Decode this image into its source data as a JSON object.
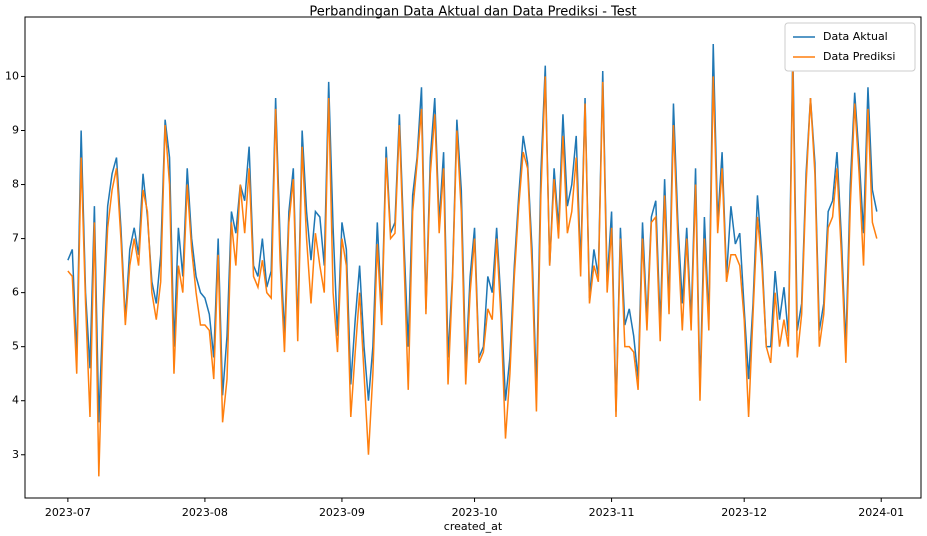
{
  "chart_data": {
    "type": "line",
    "title": "Perbandingan Data Aktual dan Data Prediksi - Test",
    "xlabel": "created_at",
    "x": [
      0,
      1,
      2,
      3,
      4,
      5,
      6,
      7,
      8,
      9,
      10,
      11,
      12,
      13,
      14,
      15,
      16,
      17,
      18,
      19,
      20,
      21,
      22,
      23,
      24,
      25,
      26,
      27,
      28,
      29,
      30,
      31,
      32,
      33,
      34,
      35,
      36,
      37,
      38,
      39,
      40,
      41,
      42,
      43,
      44,
      45,
      46,
      47,
      48,
      49,
      50,
      51,
      52,
      53,
      54,
      55,
      56,
      57,
      58,
      59,
      60,
      61,
      62,
      63,
      64,
      65,
      66,
      67,
      68,
      69,
      70,
      71,
      72,
      73,
      74,
      75,
      76,
      77,
      78,
      79,
      80,
      81,
      82,
      83,
      84,
      85,
      86,
      87,
      88,
      89,
      90,
      91,
      92,
      93,
      94,
      95,
      96,
      97,
      98,
      99,
      100,
      101,
      102,
      103,
      104,
      105,
      106,
      107,
      108,
      109,
      110,
      111,
      112,
      113,
      114,
      115,
      116,
      117,
      118,
      119,
      120,
      121,
      122,
      123,
      124,
      125,
      126,
      127,
      128,
      129,
      130,
      131,
      132,
      133,
      134,
      135,
      136,
      137,
      138,
      139,
      140,
      141,
      142,
      143,
      144,
      145,
      146,
      147,
      148,
      149,
      150,
      151,
      152,
      153,
      154,
      155,
      156,
      157,
      158,
      159,
      160,
      161,
      162,
      163,
      164,
      165,
      166,
      167,
      168,
      169,
      170,
      171,
      172,
      173,
      174,
      175,
      176,
      177,
      178,
      179,
      180,
      181,
      182,
      183
    ],
    "series": [
      {
        "name": "Data Aktual",
        "color": "#1f77b4",
        "values": [
          6.6,
          6.8,
          4.8,
          9.0,
          6.0,
          4.6,
          7.6,
          3.6,
          5.8,
          7.6,
          8.2,
          8.5,
          7.2,
          5.5,
          6.8,
          7.2,
          6.7,
          8.2,
          7.4,
          6.2,
          5.8,
          6.7,
          9.2,
          8.5,
          5.0,
          7.2,
          6.3,
          8.3,
          7.0,
          6.3,
          6.0,
          5.9,
          5.6,
          4.8,
          7.0,
          4.1,
          5.2,
          7.5,
          7.1,
          8.0,
          7.7,
          8.7,
          6.5,
          6.3,
          7.0,
          6.1,
          6.4,
          9.6,
          7.0,
          5.2,
          7.5,
          8.3,
          5.3,
          9.0,
          7.5,
          6.6,
          7.5,
          7.4,
          6.5,
          9.9,
          7.2,
          5.2,
          7.3,
          6.8,
          4.3,
          5.5,
          6.5,
          5.0,
          4.0,
          5.0,
          7.3,
          5.6,
          8.7,
          7.1,
          7.3,
          9.3,
          7.0,
          5.0,
          7.8,
          8.5,
          9.8,
          5.7,
          8.5,
          9.6,
          7.3,
          8.6,
          4.8,
          6.3,
          9.2,
          7.9,
          4.6,
          6.3,
          7.2,
          4.8,
          5.0,
          6.3,
          6.0,
          7.2,
          5.8,
          4.0,
          4.8,
          6.5,
          7.8,
          8.9,
          8.4,
          6.8,
          4.2,
          8.2,
          10.2,
          6.5,
          8.3,
          7.2,
          9.3,
          7.6,
          8.0,
          8.9,
          6.5,
          9.6,
          5.9,
          6.8,
          6.3,
          10.1,
          6.2,
          7.5,
          3.8,
          7.2,
          5.4,
          5.7,
          5.2,
          4.4,
          7.3,
          5.5,
          7.4,
          7.7,
          5.4,
          8.1,
          5.8,
          9.5,
          7.3,
          5.8,
          7.2,
          5.5,
          8.3,
          4.2,
          7.4,
          5.5,
          10.6,
          7.3,
          8.6,
          6.3,
          7.6,
          6.9,
          7.1,
          5.7,
          4.4,
          5.8,
          7.8,
          6.7,
          5.0,
          5.0,
          6.4,
          5.5,
          6.1,
          5.2,
          10.5,
          5.3,
          5.8,
          8.2,
          9.6,
          8.4,
          5.3,
          5.8,
          7.5,
          7.7,
          8.6,
          7.0,
          5.0,
          8.0,
          9.7,
          8.5,
          7.1,
          9.8,
          7.9,
          7.5
        ]
      },
      {
        "name": "Data Prediksi",
        "color": "#ff7f0e",
        "values": [
          6.4,
          6.3,
          4.5,
          8.5,
          5.8,
          3.7,
          7.3,
          2.6,
          5.5,
          7.2,
          7.9,
          8.3,
          7.0,
          5.4,
          6.5,
          7.0,
          6.5,
          7.9,
          7.5,
          6.0,
          5.5,
          6.2,
          9.1,
          8.0,
          4.5,
          6.5,
          6.0,
          8.0,
          6.8,
          6.0,
          5.4,
          5.4,
          5.3,
          4.4,
          6.7,
          3.6,
          4.4,
          7.3,
          6.5,
          8.0,
          7.1,
          8.3,
          6.3,
          6.1,
          6.6,
          6.0,
          5.9,
          9.4,
          6.6,
          4.9,
          7.3,
          8.1,
          5.1,
          8.7,
          7.0,
          5.8,
          7.1,
          6.5,
          6.0,
          9.6,
          6.0,
          4.9,
          7.0,
          6.5,
          3.7,
          4.9,
          6.0,
          4.5,
          3.0,
          4.5,
          6.9,
          5.4,
          8.5,
          7.0,
          7.1,
          9.1,
          6.7,
          4.2,
          7.5,
          8.4,
          9.4,
          5.6,
          8.2,
          9.3,
          7.1,
          8.3,
          4.3,
          6.2,
          9.0,
          7.5,
          4.3,
          6.0,
          7.0,
          4.7,
          4.9,
          5.7,
          5.5,
          7.0,
          5.5,
          3.3,
          4.5,
          6.3,
          7.6,
          8.6,
          8.3,
          6.5,
          3.8,
          7.8,
          10.0,
          6.5,
          8.1,
          7.0,
          8.9,
          7.1,
          7.5,
          8.5,
          6.3,
          9.5,
          5.8,
          6.5,
          6.2,
          9.9,
          6.0,
          7.2,
          3.7,
          7.0,
          5.0,
          5.0,
          4.9,
          4.2,
          7.0,
          5.3,
          7.3,
          7.4,
          5.1,
          7.8,
          5.6,
          9.1,
          7.0,
          5.3,
          7.0,
          5.3,
          8.0,
          4.0,
          7.0,
          5.3,
          10.0,
          7.1,
          8.3,
          6.2,
          6.7,
          6.7,
          6.5,
          5.5,
          3.7,
          5.6,
          7.4,
          6.5,
          5.0,
          4.7,
          6.0,
          5.0,
          5.5,
          5.0,
          10.2,
          4.8,
          5.6,
          8.0,
          9.6,
          8.2,
          5.0,
          5.6,
          7.2,
          7.4,
          8.3,
          6.7,
          4.7,
          7.6,
          9.5,
          8.2,
          6.5,
          9.4,
          7.3,
          7.0
        ]
      }
    ],
    "xlim": [
      -9.7,
      193
    ],
    "xticks": [
      {
        "value": 0,
        "label": "2023-07"
      },
      {
        "value": 31,
        "label": "2023-08"
      },
      {
        "value": 62,
        "label": "2023-09"
      },
      {
        "value": 92,
        "label": "2023-10"
      },
      {
        "value": 123,
        "label": "2023-11"
      },
      {
        "value": 153,
        "label": "2023-12"
      },
      {
        "value": 184,
        "label": "2024-01"
      }
    ],
    "ylim": [
      2.2,
      11.1
    ],
    "yticks": [
      3,
      4,
      5,
      6,
      7,
      8,
      9,
      10
    ],
    "legend": "upper right"
  }
}
